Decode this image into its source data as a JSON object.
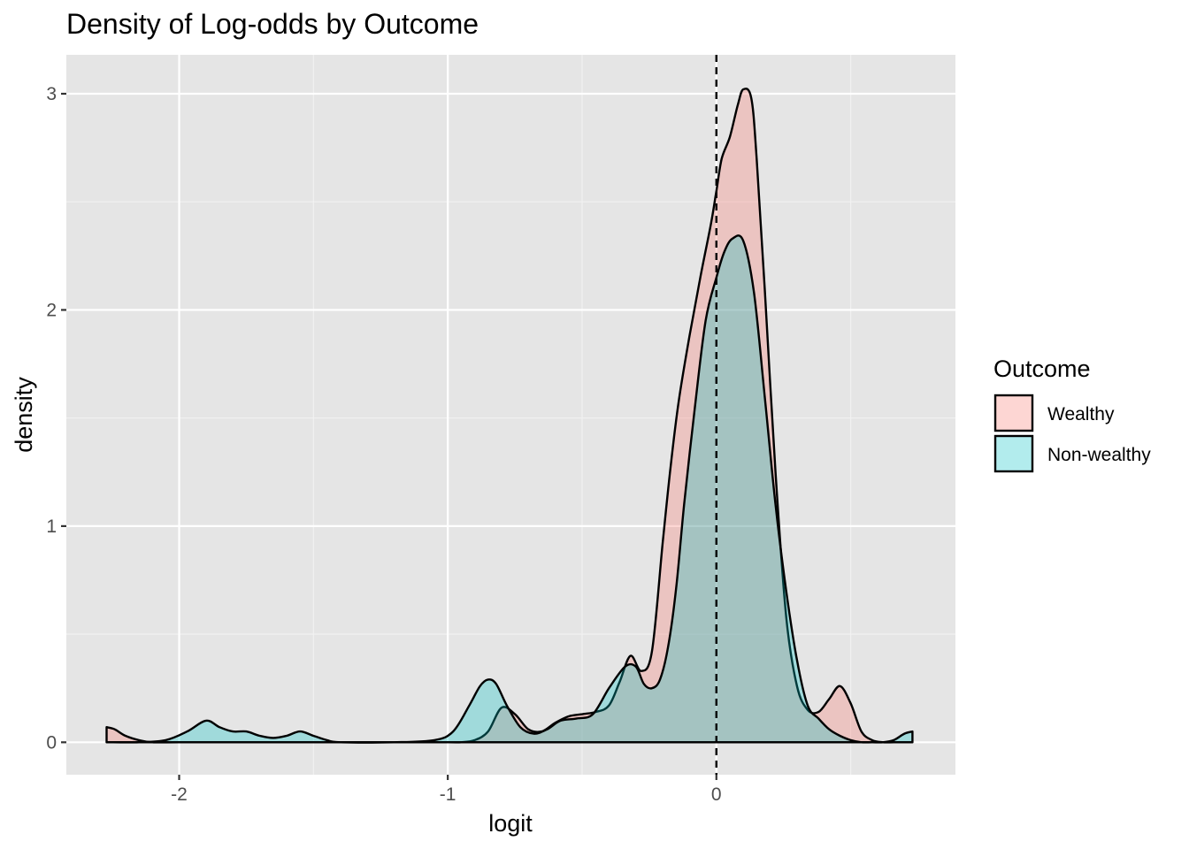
{
  "chart_data": {
    "type": "area",
    "title": "Density of Log-odds by Outcome",
    "xlabel": "logit",
    "ylabel": "density",
    "xlim": [
      -2.42,
      0.89
    ],
    "ylim": [
      -0.15,
      3.18
    ],
    "x_ticks": [
      -2,
      -1,
      0
    ],
    "x_tick_labels": [
      "-2",
      "-1",
      "0"
    ],
    "y_ticks": [
      0,
      1,
      2,
      3
    ],
    "y_tick_labels": [
      "0",
      "1",
      "2",
      "3"
    ],
    "grid": true,
    "vline": {
      "x": 0,
      "style": "dashed"
    },
    "legend": {
      "title": "Outcome",
      "position": "right",
      "entries": [
        "Wealthy",
        "Non-wealthy"
      ]
    },
    "series": [
      {
        "name": "Wealthy",
        "color": "#F8766D",
        "x": [
          -2.27,
          -2.24,
          -2.2,
          -2.15,
          -2.1,
          -2.0,
          -1.8,
          -1.6,
          -1.4,
          -1.2,
          -1.0,
          -0.95,
          -0.9,
          -0.85,
          -0.8,
          -0.75,
          -0.7,
          -0.65,
          -0.6,
          -0.55,
          -0.5,
          -0.45,
          -0.4,
          -0.36,
          -0.32,
          -0.28,
          -0.24,
          -0.2,
          -0.17,
          -0.14,
          -0.1,
          -0.06,
          -0.02,
          0.0,
          0.02,
          0.05,
          0.08,
          0.1,
          0.13,
          0.15,
          0.18,
          0.22,
          0.26,
          0.3,
          0.34,
          0.38,
          0.42,
          0.46,
          0.5,
          0.54,
          0.58,
          0.62,
          0.66,
          0.7,
          0.73
        ],
        "values": [
          0.07,
          0.06,
          0.03,
          0.01,
          0.0,
          0.0,
          0.0,
          0.0,
          0.0,
          0.0,
          0.0,
          0.0,
          0.01,
          0.05,
          0.16,
          0.13,
          0.06,
          0.05,
          0.09,
          0.12,
          0.13,
          0.14,
          0.17,
          0.28,
          0.4,
          0.33,
          0.42,
          0.92,
          1.28,
          1.58,
          1.88,
          2.15,
          2.4,
          2.55,
          2.7,
          2.8,
          2.95,
          3.02,
          2.98,
          2.7,
          2.1,
          1.25,
          0.58,
          0.26,
          0.15,
          0.14,
          0.2,
          0.26,
          0.18,
          0.05,
          0.01,
          0.0,
          0.0,
          0.0,
          0.0
        ]
      },
      {
        "name": "Non-wealthy",
        "color": "#00BFC4",
        "x": [
          -2.27,
          -2.15,
          -2.05,
          -1.97,
          -1.9,
          -1.85,
          -1.8,
          -1.75,
          -1.7,
          -1.65,
          -1.6,
          -1.55,
          -1.5,
          -1.45,
          -1.4,
          -1.2,
          -1.05,
          -0.98,
          -0.92,
          -0.88,
          -0.85,
          -0.82,
          -0.78,
          -0.73,
          -0.68,
          -0.63,
          -0.58,
          -0.52,
          -0.46,
          -0.4,
          -0.34,
          -0.3,
          -0.27,
          -0.24,
          -0.21,
          -0.18,
          -0.15,
          -0.12,
          -0.08,
          -0.04,
          0.0,
          0.03,
          0.06,
          0.1,
          0.14,
          0.18,
          0.22,
          0.26,
          0.3,
          0.34,
          0.38,
          0.42,
          0.46,
          0.5,
          0.54,
          0.58,
          0.62,
          0.66,
          0.7,
          0.73
        ],
        "values": [
          0.0,
          0.0,
          0.01,
          0.05,
          0.1,
          0.07,
          0.05,
          0.05,
          0.03,
          0.02,
          0.03,
          0.05,
          0.03,
          0.01,
          0.0,
          0.0,
          0.01,
          0.05,
          0.17,
          0.26,
          0.29,
          0.27,
          0.17,
          0.07,
          0.04,
          0.06,
          0.1,
          0.11,
          0.13,
          0.25,
          0.35,
          0.35,
          0.27,
          0.25,
          0.29,
          0.44,
          0.71,
          1.1,
          1.55,
          1.95,
          2.15,
          2.27,
          2.33,
          2.32,
          2.08,
          1.6,
          1.1,
          0.7,
          0.38,
          0.17,
          0.11,
          0.06,
          0.03,
          0.01,
          0.0,
          0.0,
          0.0,
          0.01,
          0.04,
          0.05
        ]
      }
    ]
  }
}
